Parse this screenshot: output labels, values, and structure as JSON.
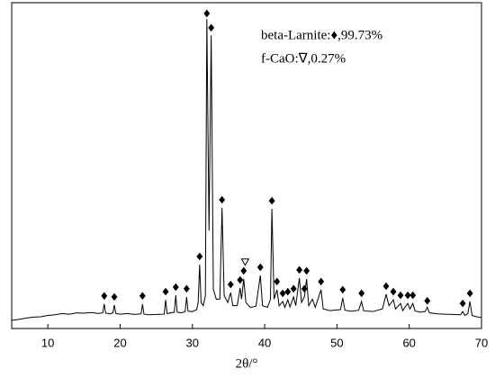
{
  "chart_data": {
    "type": "line",
    "xlabel": "2θ/°",
    "annotations": [
      "beta-Larnite:♦,99.73%",
      "f-CaO:∇,0.27%"
    ],
    "xlim": [
      5,
      70
    ],
    "xticks": [
      10,
      20,
      30,
      40,
      50,
      60,
      70
    ],
    "ylim": [
      0,
      100
    ],
    "x": [
      5,
      6,
      7,
      8,
      9,
      10,
      11,
      12,
      13,
      14,
      15,
      16,
      17,
      17.6,
      17.8,
      18.0,
      18.6,
      19.0,
      19.2,
      19.4,
      20,
      21,
      22,
      22.9,
      23.1,
      23.3,
      24,
      25,
      26.1,
      26.3,
      26.5,
      27.5,
      27.7,
      27.9,
      28.5,
      29.0,
      29.2,
      29.4,
      30,
      30.6,
      30.8,
      31.0,
      31.2,
      31.5,
      31.8,
      32.0,
      32.3,
      32.6,
      32.9,
      33.3,
      33.8,
      34.1,
      34.4,
      34.9,
      35.3,
      35.6,
      36.2,
      36.6,
      36.8,
      37.1,
      37.4,
      38,
      38.8,
      39.4,
      39.7,
      40.4,
      40.8,
      41.0,
      41.3,
      41.7,
      42.0,
      42.5,
      42.8,
      43.2,
      43.5,
      44.0,
      44.3,
      44.8,
      45.1,
      45.5,
      45.8,
      46.1,
      46.6,
      47.0,
      47.8,
      48.1,
      49,
      50.5,
      50.8,
      51.1,
      52,
      53.0,
      53.4,
      53.7,
      55,
      56.3,
      56.8,
      57.2,
      57.8,
      58.1,
      58.8,
      59.1,
      59.8,
      60.1,
      60.5,
      60.8,
      61.5,
      62.2,
      62.5,
      62.8,
      64,
      65,
      66,
      67.1,
      67.4,
      67.7,
      68.1,
      68.4,
      68.7,
      69.3,
      70
    ],
    "series": [
      {
        "color": "#000000",
        "values": [
          2.5,
          2.8,
          3.2,
          3.5,
          3.6,
          4.0,
          4.2,
          4.6,
          4.4,
          4.8,
          4.7,
          4.9,
          4.6,
          4.8,
          7.5,
          4.7,
          4.5,
          4.8,
          7.2,
          4.6,
          4.4,
          4.6,
          4.3,
          4.5,
          7.5,
          4.4,
          4.2,
          4.3,
          4.4,
          8.8,
          4.6,
          5,
          10.2,
          5,
          4.8,
          5.2,
          9.7,
          5.3,
          5.2,
          5.8,
          8,
          19.6,
          8,
          7,
          10,
          95,
          30,
          90,
          12,
          9,
          9,
          37,
          10,
          8,
          11,
          7,
          7,
          12.4,
          9,
          15.2,
          8,
          6.5,
          6.8,
          16.3,
          7,
          6.5,
          9,
          36.7,
          9,
          11.9,
          7,
          8.3,
          6.5,
          8.8,
          6.6,
          9.7,
          7,
          15.5,
          8,
          9.7,
          15.2,
          7,
          9,
          6.5,
          11.9,
          6,
          5.5,
          5.8,
          9.4,
          5.6,
          5.3,
          5.6,
          8.3,
          5.4,
          5.2,
          6,
          10.5,
          7,
          8.8,
          6,
          7.7,
          5.5,
          7.7,
          6,
          7.7,
          5.4,
          5,
          5.2,
          6.5,
          4.8,
          4.5,
          4.4,
          4.3,
          4.2,
          5.2,
          4.0,
          4.5,
          8.3,
          4.0,
          3.6,
          3.4
        ]
      }
    ],
    "markers": [
      {
        "symbol": "diamond",
        "color": "#000000",
        "x": [
          17.8,
          19.2,
          23.1,
          26.3,
          27.7,
          29.2,
          31.0,
          32.0,
          32.6,
          34.1,
          35.3,
          36.6,
          37.1,
          39.4,
          41.0,
          41.7,
          42.5,
          43.2,
          44.0,
          44.8,
          45.5,
          45.8,
          47.8,
          50.8,
          53.4,
          56.8,
          57.8,
          58.8,
          59.8,
          60.5,
          62.5,
          67.4,
          68.4
        ],
        "y": [
          10,
          9.7,
          10,
          11.3,
          12.7,
          12.2,
          22.1,
          96.7,
          92.3,
          39.5,
          13.5,
          14.9,
          17.7,
          18.8,
          39.2,
          14.4,
          10.8,
          11.3,
          12.2,
          18,
          12.2,
          17.7,
          14.4,
          11.9,
          10.8,
          13,
          11.3,
          10.2,
          10.2,
          10.2,
          8.5,
          7.7,
          10.8
        ]
      },
      {
        "symbol": "triangle",
        "color": "#000000",
        "x": [
          37.3
        ],
        "y": [
          20.5
        ]
      }
    ]
  }
}
